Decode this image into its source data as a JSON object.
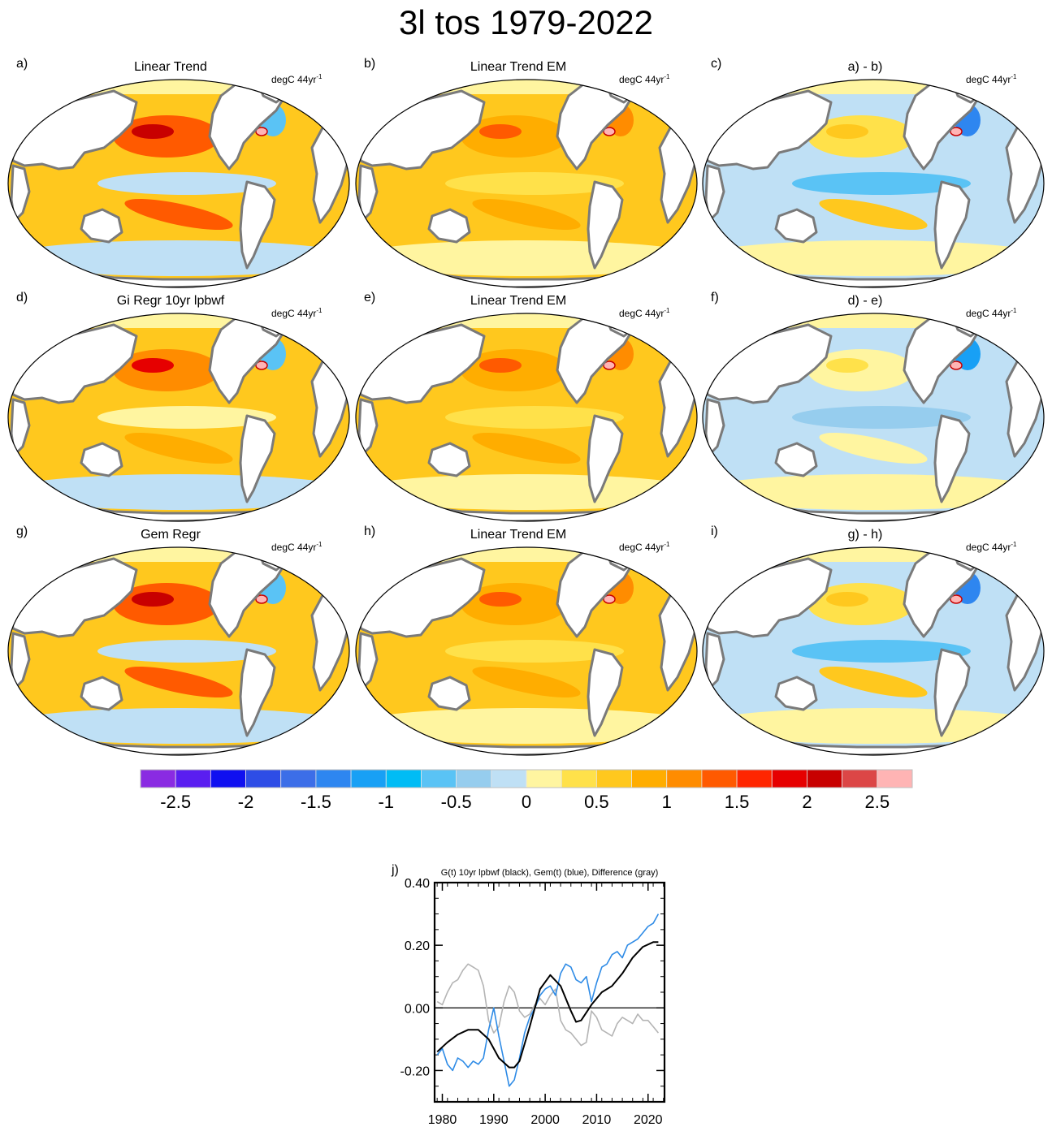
{
  "title": "3l tos 1979-2022",
  "colors": {
    "ocean_bg": "#ffffff",
    "land": "#ffffff",
    "coast": "#7a7a7a",
    "black_line": "#000000",
    "blue_line": "#2e8be6",
    "gray_line": "#b4b4b4"
  },
  "panels": [
    {
      "label": "a)",
      "title": "Linear Trend",
      "units": "degC 44yr",
      "units_sup": "-1",
      "style": "obs"
    },
    {
      "label": "b)",
      "title": "Linear Trend EM",
      "units": "degC 44yr",
      "units_sup": "-1",
      "style": "em"
    },
    {
      "label": "c)",
      "title": "a) - b)",
      "units": "degC 44yr",
      "units_sup": "-1",
      "style": "diff"
    },
    {
      "label": "d)",
      "title": "Gi Regr 10yr lpbwf",
      "units": "degC 44yr",
      "units_sup": "-1",
      "style": "obs2"
    },
    {
      "label": "e)",
      "title": "Linear Trend EM",
      "units": "degC 44yr",
      "units_sup": "-1",
      "style": "em"
    },
    {
      "label": "f)",
      "title": "d) - e)",
      "units": "degC 44yr",
      "units_sup": "-1",
      "style": "diff2"
    },
    {
      "label": "g)",
      "title": "Gem Regr",
      "units": "degC 44yr",
      "units_sup": "-1",
      "style": "obs"
    },
    {
      "label": "h)",
      "title": "Linear Trend EM",
      "units": "degC 44yr",
      "units_sup": "-1",
      "style": "em"
    },
    {
      "label": "i)",
      "title": "g) - h)",
      "units": "degC 44yr",
      "units_sup": "-1",
      "style": "diff"
    }
  ],
  "colorbar": {
    "colors": [
      "#8a2be2",
      "#5a1ef0",
      "#1010f0",
      "#2e4de6",
      "#3c6ee8",
      "#2e86f0",
      "#18a0f5",
      "#00bcf5",
      "#5ac3f5",
      "#96cdee",
      "#bfe0f5",
      "#fff5a0",
      "#ffe14a",
      "#ffc81e",
      "#ffad00",
      "#ff8c00",
      "#ff5a00",
      "#ff2600",
      "#e60000",
      "#c80000",
      "#dc4646",
      "#ffb4b4"
    ],
    "boundaries": [
      -2.75,
      -2.5,
      -2.25,
      -2,
      -1.75,
      -1.5,
      -1.25,
      -1,
      -0.75,
      -0.5,
      -0.25,
      0,
      0.25,
      0.5,
      0.75,
      1,
      1.25,
      1.5,
      1.75,
      2,
      2.25,
      2.5,
      2.75
    ],
    "tick_values": [
      -2.5,
      -2,
      -1.5,
      -1,
      -0.5,
      0,
      0.5,
      1,
      1.5,
      2,
      2.5
    ],
    "tick_labels": [
      "-2.5",
      "-2",
      "-1.5",
      "-1",
      "-0.5",
      "0",
      "0.5",
      "1",
      "1.5",
      "2",
      "2.5"
    ]
  },
  "chart_data": {
    "type": "line",
    "panel_label": "j)",
    "title": "G(t)  10yr lpbwf (black), Gem(t) (blue), Difference (gray)",
    "xlabel": "",
    "ylabel": "",
    "xlim": [
      1978.5,
      2023.2
    ],
    "ylim": [
      -0.3,
      0.4
    ],
    "xticks": [
      1980,
      1990,
      2000,
      2010,
      2020
    ],
    "xtick_labels": [
      "1980",
      "1990",
      "2000",
      "2010",
      "2020"
    ],
    "yticks": [
      -0.2,
      0.0,
      0.2,
      0.4
    ],
    "ytick_labels": [
      "-0.20",
      "0.00",
      "0.20",
      "0.40"
    ],
    "zero_line": 0.0,
    "series": [
      {
        "name": "G(t)  10yr lpbwf",
        "color": "black",
        "x": [
          1979,
          1981,
          1983,
          1985,
          1987,
          1989,
          1991,
          1993,
          1994,
          1995,
          1997,
          1999,
          2001,
          2003,
          2005,
          2006,
          2007,
          2009,
          2011,
          2013,
          2015,
          2017,
          2019,
          2021,
          2022
        ],
        "y": [
          -0.14,
          -0.11,
          -0.085,
          -0.07,
          -0.07,
          -0.1,
          -0.16,
          -0.19,
          -0.19,
          -0.17,
          -0.06,
          0.06,
          0.105,
          0.07,
          -0.01,
          -0.045,
          -0.04,
          0.01,
          0.05,
          0.07,
          0.11,
          0.16,
          0.195,
          0.21,
          0.21
        ]
      },
      {
        "name": "Gem(t)",
        "color": "blue",
        "x": [
          1979,
          1980,
          1981,
          1982,
          1983,
          1984,
          1985,
          1986,
          1987,
          1988,
          1989,
          1990,
          1991,
          1992,
          1993,
          1994,
          1995,
          1996,
          1997,
          1998,
          1999,
          2000,
          2001,
          2002,
          2003,
          2004,
          2005,
          2006,
          2007,
          2008,
          2009,
          2010,
          2011,
          2012,
          2013,
          2014,
          2015,
          2016,
          2017,
          2018,
          2019,
          2020,
          2021,
          2022
        ],
        "y": [
          -0.15,
          -0.13,
          -0.18,
          -0.2,
          -0.16,
          -0.17,
          -0.19,
          -0.17,
          -0.18,
          -0.16,
          -0.07,
          0.0,
          -0.09,
          -0.17,
          -0.25,
          -0.23,
          -0.16,
          -0.08,
          -0.03,
          0.0,
          0.04,
          0.06,
          0.07,
          0.04,
          0.11,
          0.14,
          0.13,
          0.09,
          0.08,
          0.1,
          0.02,
          0.08,
          0.13,
          0.14,
          0.17,
          0.18,
          0.16,
          0.2,
          0.21,
          0.22,
          0.24,
          0.26,
          0.27,
          0.3
        ]
      },
      {
        "name": "Difference",
        "color": "gray",
        "x": [
          1979,
          1980,
          1981,
          1982,
          1983,
          1984,
          1985,
          1986,
          1987,
          1988,
          1989,
          1990,
          1991,
          1992,
          1993,
          1994,
          1995,
          1996,
          1997,
          1998,
          1999,
          2000,
          2001,
          2002,
          2003,
          2004,
          2005,
          2006,
          2007,
          2008,
          2009,
          2010,
          2011,
          2012,
          2013,
          2014,
          2015,
          2016,
          2017,
          2018,
          2019,
          2020,
          2021,
          2022
        ],
        "y": [
          0.02,
          0.01,
          0.05,
          0.08,
          0.09,
          0.12,
          0.14,
          0.13,
          0.12,
          0.07,
          -0.04,
          -0.08,
          -0.06,
          0.02,
          0.07,
          0.05,
          -0.01,
          -0.03,
          -0.02,
          0.01,
          0.03,
          0.01,
          0.04,
          0.06,
          -0.04,
          -0.07,
          -0.08,
          -0.1,
          -0.12,
          -0.11,
          -0.01,
          -0.03,
          -0.07,
          -0.08,
          -0.09,
          -0.05,
          -0.03,
          -0.04,
          -0.05,
          -0.02,
          -0.04,
          -0.04,
          -0.06,
          -0.08
        ]
      }
    ]
  }
}
